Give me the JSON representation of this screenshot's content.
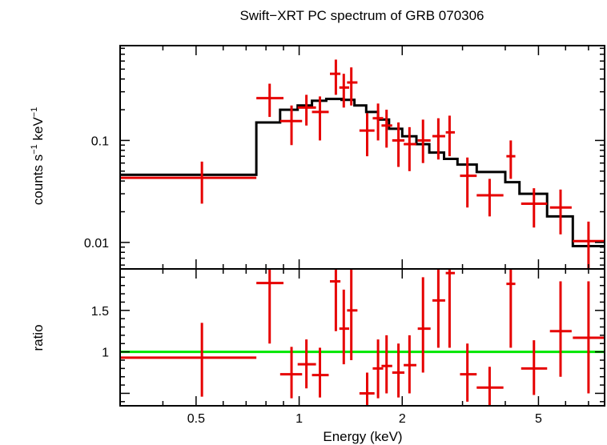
{
  "chart_data": [
    {
      "type": "scatter",
      "panel": "spectrum",
      "title": "Swift−XRT PC spectrum of GRB 070306",
      "xlabel": "Energy (keV)",
      "ylabel_main": "counts s",
      "ylabel_sup1": "−1",
      "ylabel_mid": " keV",
      "ylabel_sup2": "−1",
      "xscale": "log",
      "yscale": "log",
      "xlim": [
        0.3,
        7.8
      ],
      "ylim": [
        0.0055,
        0.85
      ],
      "xticks": [
        {
          "value": 0.5,
          "label": "0.5"
        },
        {
          "value": 1,
          "label": "1"
        },
        {
          "value": 2,
          "label": "2"
        },
        {
          "value": 5,
          "label": "5"
        }
      ],
      "yticks": [
        {
          "value": 0.01,
          "label": "0.01"
        },
        {
          "value": 0.1,
          "label": "0.1"
        }
      ],
      "series": [
        {
          "name": "data",
          "color": "#e60000",
          "points": [
            {
              "x": 0.52,
              "xlo": 0.3,
              "xhi": 0.75,
              "y": 0.043,
              "ylo": 0.024,
              "yhi": 0.062
            },
            {
              "x": 0.82,
              "xlo": 0.75,
              "xhi": 0.9,
              "y": 0.26,
              "ylo": 0.17,
              "yhi": 0.36
            },
            {
              "x": 0.95,
              "xlo": 0.88,
              "xhi": 1.02,
              "y": 0.155,
              "ylo": 0.09,
              "yhi": 0.22
            },
            {
              "x": 1.05,
              "xlo": 0.99,
              "xhi": 1.12,
              "y": 0.21,
              "ylo": 0.14,
              "yhi": 0.28
            },
            {
              "x": 1.15,
              "xlo": 1.09,
              "xhi": 1.22,
              "y": 0.19,
              "ylo": 0.1,
              "yhi": 0.27
            },
            {
              "x": 1.28,
              "xlo": 1.23,
              "xhi": 1.32,
              "y": 0.45,
              "ylo": 0.28,
              "yhi": 0.62
            },
            {
              "x": 1.35,
              "xlo": 1.31,
              "xhi": 1.4,
              "y": 0.33,
              "ylo": 0.21,
              "yhi": 0.45
            },
            {
              "x": 1.42,
              "xlo": 1.38,
              "xhi": 1.48,
              "y": 0.37,
              "ylo": 0.22,
              "yhi": 0.52
            },
            {
              "x": 1.58,
              "xlo": 1.5,
              "xhi": 1.66,
              "y": 0.125,
              "ylo": 0.07,
              "yhi": 0.185
            },
            {
              "x": 1.7,
              "xlo": 1.64,
              "xhi": 1.76,
              "y": 0.165,
              "ylo": 0.1,
              "yhi": 0.23
            },
            {
              "x": 1.8,
              "xlo": 1.74,
              "xhi": 1.87,
              "y": 0.14,
              "ylo": 0.085,
              "yhi": 0.2
            },
            {
              "x": 1.95,
              "xlo": 1.87,
              "xhi": 2.03,
              "y": 0.1,
              "ylo": 0.055,
              "yhi": 0.15
            },
            {
              "x": 2.1,
              "xlo": 2.02,
              "xhi": 2.2,
              "y": 0.092,
              "ylo": 0.05,
              "yhi": 0.135
            },
            {
              "x": 2.3,
              "xlo": 2.22,
              "xhi": 2.42,
              "y": 0.1,
              "ylo": 0.06,
              "yhi": 0.16
            },
            {
              "x": 2.55,
              "xlo": 2.45,
              "xhi": 2.67,
              "y": 0.11,
              "ylo": 0.065,
              "yhi": 0.165
            },
            {
              "x": 2.75,
              "xlo": 2.68,
              "xhi": 2.85,
              "y": 0.12,
              "ylo": 0.07,
              "yhi": 0.175
            },
            {
              "x": 3.1,
              "xlo": 2.95,
              "xhi": 3.3,
              "y": 0.045,
              "ylo": 0.022,
              "yhi": 0.068
            },
            {
              "x": 3.6,
              "xlo": 3.3,
              "xhi": 3.95,
              "y": 0.029,
              "ylo": 0.018,
              "yhi": 0.042
            },
            {
              "x": 4.15,
              "xlo": 4.03,
              "xhi": 4.28,
              "y": 0.07,
              "ylo": 0.042,
              "yhi": 0.1
            },
            {
              "x": 4.85,
              "xlo": 4.45,
              "xhi": 5.3,
              "y": 0.024,
              "ylo": 0.014,
              "yhi": 0.034
            },
            {
              "x": 5.8,
              "xlo": 5.4,
              "xhi": 6.25,
              "y": 0.022,
              "ylo": 0.012,
              "yhi": 0.033
            },
            {
              "x": 7.0,
              "xlo": 6.3,
              "xhi": 7.8,
              "y": 0.0103,
              "ylo": 0.0055,
              "yhi": 0.016
            }
          ]
        },
        {
          "name": "model",
          "color": "#000000",
          "style": "step",
          "bins": [
            {
              "xlo": 0.3,
              "xhi": 0.75,
              "y": 0.046
            },
            {
              "xlo": 0.75,
              "xhi": 0.88,
              "y": 0.15
            },
            {
              "xlo": 0.88,
              "xhi": 0.99,
              "y": 0.2
            },
            {
              "xlo": 0.99,
              "xhi": 1.09,
              "y": 0.22
            },
            {
              "xlo": 1.09,
              "xhi": 1.2,
              "y": 0.245
            },
            {
              "xlo": 1.2,
              "xhi": 1.33,
              "y": 0.255
            },
            {
              "xlo": 1.33,
              "xhi": 1.45,
              "y": 0.25
            },
            {
              "xlo": 1.45,
              "xhi": 1.57,
              "y": 0.22
            },
            {
              "xlo": 1.57,
              "xhi": 1.7,
              "y": 0.19
            },
            {
              "xlo": 1.7,
              "xhi": 1.83,
              "y": 0.16
            },
            {
              "xlo": 1.83,
              "xhi": 2.0,
              "y": 0.13
            },
            {
              "xlo": 2.0,
              "xhi": 2.2,
              "y": 0.11
            },
            {
              "xlo": 2.2,
              "xhi": 2.4,
              "y": 0.092
            },
            {
              "xlo": 2.4,
              "xhi": 2.65,
              "y": 0.076
            },
            {
              "xlo": 2.65,
              "xhi": 2.9,
              "y": 0.066
            },
            {
              "xlo": 2.9,
              "xhi": 3.3,
              "y": 0.058
            },
            {
              "xlo": 3.3,
              "xhi": 4.0,
              "y": 0.049
            },
            {
              "xlo": 4.0,
              "xhi": 4.4,
              "y": 0.039
            },
            {
              "xlo": 4.4,
              "xhi": 5.3,
              "y": 0.03
            },
            {
              "xlo": 5.3,
              "xhi": 6.3,
              "y": 0.018
            },
            {
              "xlo": 6.3,
              "xhi": 7.8,
              "y": 0.0092
            }
          ]
        }
      ]
    },
    {
      "type": "scatter",
      "panel": "ratio",
      "xlabel": "Energy (keV)",
      "ylabel": "ratio",
      "xscale": "log",
      "xlim": [
        0.3,
        7.8
      ],
      "ylim": [
        0.35,
        2.0
      ],
      "yticks": [
        {
          "value": 1,
          "label": "1"
        },
        {
          "value": 1.5,
          "label": "1.5"
        }
      ],
      "reference_line": {
        "y": 1,
        "color": "#00e600"
      },
      "series": [
        {
          "name": "ratio",
          "color": "#e60000",
          "points": [
            {
              "x": 0.52,
              "xlo": 0.3,
              "xhi": 0.75,
              "y": 0.93,
              "ylo": 0.46,
              "yhi": 1.35
            },
            {
              "x": 0.82,
              "xlo": 0.75,
              "xhi": 0.9,
              "y": 1.83,
              "ylo": 1.1,
              "yhi": 2.4
            },
            {
              "x": 0.95,
              "xlo": 0.88,
              "xhi": 1.02,
              "y": 0.73,
              "ylo": 0.44,
              "yhi": 1.06
            },
            {
              "x": 1.05,
              "xlo": 0.99,
              "xhi": 1.12,
              "y": 0.85,
              "ylo": 0.56,
              "yhi": 1.15
            },
            {
              "x": 1.15,
              "xlo": 1.09,
              "xhi": 1.22,
              "y": 0.72,
              "ylo": 0.45,
              "yhi": 1.05
            },
            {
              "x": 1.28,
              "xlo": 1.23,
              "xhi": 1.32,
              "y": 1.85,
              "ylo": 1.25,
              "yhi": 2.5
            },
            {
              "x": 1.35,
              "xlo": 1.31,
              "xhi": 1.4,
              "y": 1.28,
              "ylo": 0.85,
              "yhi": 1.75
            },
            {
              "x": 1.42,
              "xlo": 1.38,
              "xhi": 1.48,
              "y": 1.5,
              "ylo": 0.9,
              "yhi": 2.1
            },
            {
              "x": 1.58,
              "xlo": 1.5,
              "xhi": 1.66,
              "y": 0.5,
              "ylo": 0.36,
              "yhi": 0.75
            },
            {
              "x": 1.7,
              "xlo": 1.64,
              "xhi": 1.76,
              "y": 0.8,
              "ylo": 0.44,
              "yhi": 1.15
            },
            {
              "x": 1.8,
              "xlo": 1.74,
              "xhi": 1.87,
              "y": 0.83,
              "ylo": 0.5,
              "yhi": 1.2
            },
            {
              "x": 1.95,
              "xlo": 1.87,
              "xhi": 2.03,
              "y": 0.75,
              "ylo": 0.45,
              "yhi": 1.1
            },
            {
              "x": 2.1,
              "xlo": 2.02,
              "xhi": 2.2,
              "y": 0.84,
              "ylo": 0.5,
              "yhi": 1.2
            },
            {
              "x": 2.3,
              "xlo": 2.22,
              "xhi": 2.42,
              "y": 1.28,
              "ylo": 0.75,
              "yhi": 1.9
            },
            {
              "x": 2.55,
              "xlo": 2.45,
              "xhi": 2.67,
              "y": 1.62,
              "ylo": 1.05,
              "yhi": 2.2
            },
            {
              "x": 2.75,
              "xlo": 2.68,
              "xhi": 2.85,
              "y": 1.95,
              "ylo": 1.05,
              "yhi": 2.6
            },
            {
              "x": 3.1,
              "xlo": 2.95,
              "xhi": 3.3,
              "y": 0.73,
              "ylo": 0.4,
              "yhi": 1.1
            },
            {
              "x": 3.6,
              "xlo": 3.3,
              "xhi": 3.95,
              "y": 0.57,
              "ylo": 0.35,
              "yhi": 0.82
            },
            {
              "x": 4.15,
              "xlo": 4.03,
              "xhi": 4.28,
              "y": 1.82,
              "ylo": 1.05,
              "yhi": 2.5
            },
            {
              "x": 4.85,
              "xlo": 4.45,
              "xhi": 5.3,
              "y": 0.8,
              "ylo": 0.48,
              "yhi": 1.14
            },
            {
              "x": 5.8,
              "xlo": 5.4,
              "xhi": 6.25,
              "y": 1.25,
              "ylo": 0.7,
              "yhi": 1.85
            },
            {
              "x": 7.0,
              "xlo": 6.3,
              "xhi": 7.8,
              "y": 1.17,
              "ylo": 0.5,
              "yhi": 1.85
            }
          ]
        }
      ]
    }
  ]
}
